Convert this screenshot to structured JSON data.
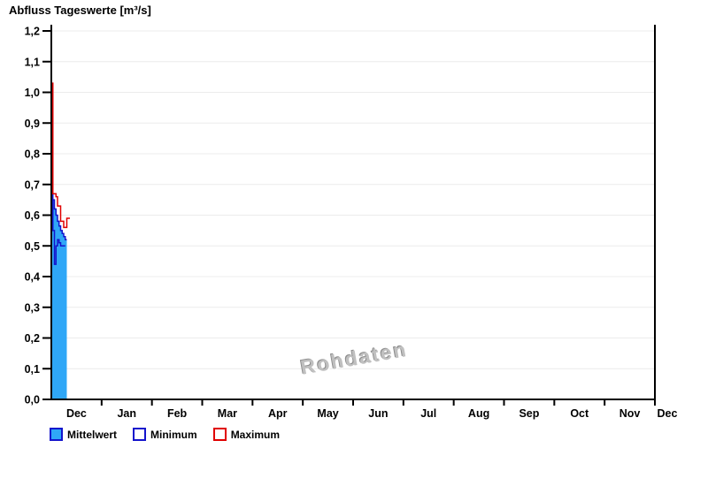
{
  "title": "Abfluss Tageswerte [m³/s]",
  "watermark": "Rohdaten",
  "colors": {
    "axis": "#000000",
    "grid": "#ececec",
    "mean_fill": "#2fa7f7",
    "mean_edge": "#1414cc",
    "min_line": "#1414cc",
    "max_line": "#e00000",
    "watermark": "#b5b5b5"
  },
  "legend": {
    "items": [
      {
        "label": "Mittelwert",
        "fill": "#2fa7f7",
        "border": "#1414cc"
      },
      {
        "label": "Minimum",
        "fill": "#ffffff",
        "border": "#1414cc"
      },
      {
        "label": "Maximum",
        "fill": "#ffffff",
        "border": "#e00000"
      }
    ]
  },
  "chart_data": {
    "type": "area",
    "title": "Abfluss Tageswerte [m³/s]",
    "xlabel": "",
    "ylabel": "m³/s",
    "ylim": [
      0.0,
      1.2
    ],
    "ytick_step": 0.1,
    "ytick_labels_top_down": [
      "1,2",
      "1,1",
      "1,0",
      "0,9",
      "0,8",
      "0,7",
      "0,6",
      "0,5",
      "0,4",
      "0,3",
      "0,2",
      "0,1",
      "0,0"
    ],
    "xtick_labels": [
      "Dec",
      "Jan",
      "Feb",
      "Mar",
      "Apr",
      "May",
      "Jun",
      "Jul",
      "Aug",
      "Sep",
      "Oct",
      "Nov",
      "Dec"
    ],
    "grid": "horizontal",
    "legend_position": "bottom-left",
    "x_unit": "day",
    "x_span_days": 390,
    "series": [
      {
        "name": "Mittelwert",
        "style": "step-area",
        "values": [
          0.8,
          0.65,
          0.62,
          0.6,
          0.58,
          0.565,
          0.55,
          0.54,
          0.53,
          0.52
        ]
      },
      {
        "name": "Minimum",
        "style": "step-line",
        "values": [
          0.78,
          0.55,
          0.44,
          0.5,
          0.52,
          0.51,
          0.5,
          0.5,
          0.5
        ]
      },
      {
        "name": "Maximum",
        "style": "step-line",
        "values": [
          1.03,
          0.67,
          0.67,
          0.66,
          0.63,
          0.63,
          0.58,
          0.58,
          0.56,
          0.56,
          0.59,
          0.59
        ]
      }
    ]
  }
}
